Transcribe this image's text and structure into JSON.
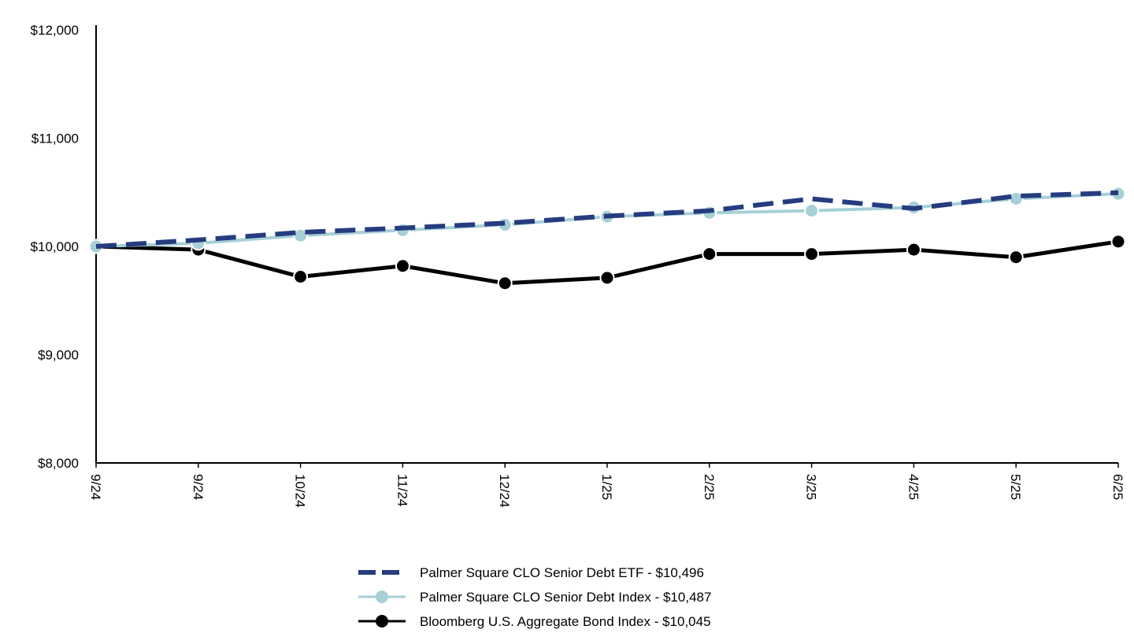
{
  "chart_data": {
    "type": "line",
    "categories": [
      "9/24",
      "9/24",
      "10/24",
      "11/24",
      "12/24",
      "1/25",
      "2/25",
      "3/25",
      "4/25",
      "5/25",
      "6/25"
    ],
    "ylim": [
      8000,
      12000
    ],
    "y_ticks": [
      8000,
      9000,
      10000,
      11000,
      12000
    ],
    "y_tick_labels": [
      "$8,000",
      "$9,000",
      "$10,000",
      "$11,000",
      "$12,000"
    ],
    "grid": false,
    "legend_position": "bottom-center",
    "series": [
      {
        "name": "Palmer Square CLO Senior Debt ETF - $10,496",
        "values": [
          10000,
          10060,
          10130,
          10170,
          10215,
          10280,
          10330,
          10440,
          10350,
          10465,
          10496
        ],
        "color": "#253C7F",
        "style": "dashed",
        "marker": "none"
      },
      {
        "name": "Palmer Square CLO Senior Debt Index - $10,487",
        "values": [
          10000,
          10030,
          10100,
          10150,
          10200,
          10275,
          10310,
          10330,
          10360,
          10440,
          10487
        ],
        "color": "#A7CFD6",
        "style": "solid",
        "marker": "circle"
      },
      {
        "name": "Bloomberg U.S. Aggregate Bond Index - $10,045",
        "values": [
          10000,
          9970,
          9720,
          9820,
          9660,
          9710,
          9930,
          9930,
          9970,
          9900,
          10045
        ],
        "color": "#000000",
        "style": "solid",
        "marker": "circle"
      }
    ]
  }
}
